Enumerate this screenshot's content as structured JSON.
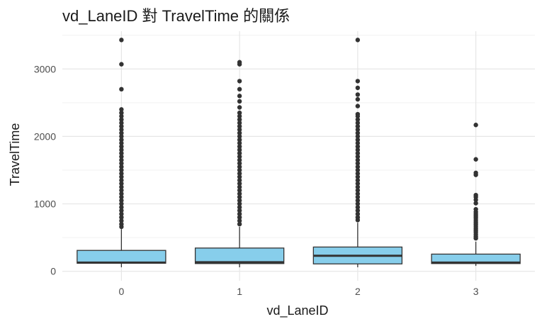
{
  "chart_data": {
    "type": "boxplot",
    "title": "vd_LaneID 對 TravelTime 的關係",
    "xlabel": "vd_LaneID",
    "ylabel": "TravelTime",
    "categories": [
      "0",
      "1",
      "2",
      "3"
    ],
    "ylim": [
      -140,
      3560
    ],
    "yticks": [
      0,
      1000,
      2000,
      3000
    ],
    "grid": true,
    "colors": {
      "box_fill": "#87ceeb",
      "box_stroke": "#333333",
      "grid_major": "#e6e6e6",
      "grid_minor": "#f2f2f2",
      "outlier": "#333333"
    },
    "boxes": [
      {
        "category": "0",
        "q1": 120,
        "median": 130,
        "q3": 310,
        "whisker_low": 60,
        "whisker_high": 625,
        "outliers": [
          3430,
          3070,
          2700,
          2400,
          2350,
          2300,
          2250,
          2200,
          2150,
          2100,
          2050,
          2000,
          1950,
          1900,
          1850,
          1800,
          1750,
          1700,
          1650,
          1600,
          1550,
          1500,
          1450,
          1400,
          1350,
          1300,
          1250,
          1200,
          1150,
          1100,
          1050,
          1000,
          950,
          900,
          850,
          800,
          750,
          700,
          660
        ]
      },
      {
        "category": "1",
        "q1": 115,
        "median": 135,
        "q3": 345,
        "whisker_low": 60,
        "whisker_high": 660,
        "outliers": [
          3100,
          3070,
          2820,
          2700,
          2600,
          2520,
          2430,
          2350,
          2300,
          2250,
          2200,
          2150,
          2100,
          2050,
          2000,
          1950,
          1900,
          1850,
          1800,
          1750,
          1700,
          1650,
          1600,
          1550,
          1500,
          1450,
          1400,
          1350,
          1300,
          1250,
          1200,
          1150,
          1100,
          1050,
          1000,
          950,
          900,
          850,
          800,
          750,
          700
        ]
      },
      {
        "category": "2",
        "q1": 110,
        "median": 230,
        "q3": 360,
        "whisker_low": 60,
        "whisker_high": 720,
        "outliers": [
          3430,
          2820,
          2720,
          2620,
          2550,
          2450,
          2330,
          2300,
          2250,
          2200,
          2150,
          2100,
          2050,
          2000,
          1950,
          1900,
          1850,
          1800,
          1750,
          1700,
          1650,
          1600,
          1550,
          1500,
          1450,
          1400,
          1350,
          1300,
          1250,
          1200,
          1150,
          1100,
          1050,
          1000,
          950,
          900,
          850,
          800,
          760
        ]
      },
      {
        "category": "3",
        "q1": 115,
        "median": 130,
        "q3": 255,
        "whisker_low": 80,
        "whisker_high": 440,
        "outliers": [
          2170,
          1660,
          1460,
          1430,
          1130,
          1100,
          1060,
          1010,
          920,
          880,
          850,
          820,
          790,
          760,
          730,
          700,
          670,
          640,
          610,
          580,
          550,
          520,
          490
        ]
      }
    ]
  }
}
